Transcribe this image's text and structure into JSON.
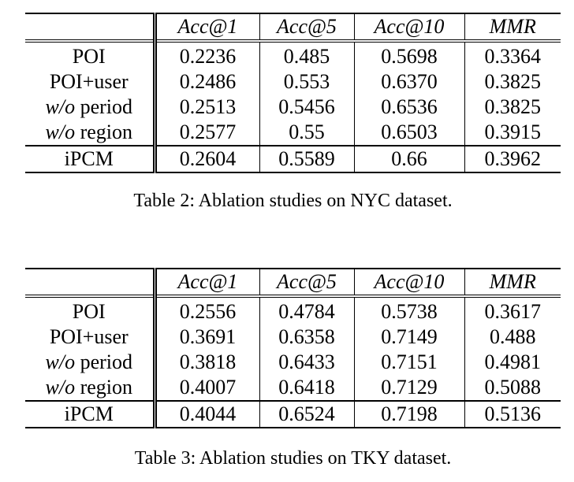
{
  "tables": [
    {
      "caption": "Table 2: Ablation studies on NYC dataset.",
      "header": [
        "Acc@1",
        "Acc@5",
        "Acc@10",
        "MMR"
      ],
      "rows": [
        {
          "label_prefix": "",
          "label_text": "POI",
          "values": [
            "0.2236",
            "0.485",
            "0.5698",
            "0.3364"
          ]
        },
        {
          "label_prefix": "",
          "label_text": "POI+user",
          "values": [
            "0.2486",
            "0.553",
            "0.6370",
            "0.3825"
          ]
        },
        {
          "label_prefix": "w/o",
          "label_text": " period",
          "values": [
            "0.2513",
            "0.5456",
            "0.6536",
            "0.3825"
          ]
        },
        {
          "label_prefix": "w/o",
          "label_text": " region",
          "values": [
            "0.2577",
            "0.55",
            "0.6503",
            "0.3915"
          ]
        },
        {
          "label_prefix": "",
          "label_text": "iPCM",
          "values": [
            "0.2604",
            "0.5589",
            "0.66",
            "0.3962"
          ],
          "bold_values": true
        }
      ]
    },
    {
      "caption": "Table 3: Ablation studies on TKY dataset.",
      "header": [
        "Acc@1",
        "Acc@5",
        "Acc@10",
        "MMR"
      ],
      "rows": [
        {
          "label_prefix": "",
          "label_text": "POI",
          "values": [
            "0.2556",
            "0.4784",
            "0.5738",
            "0.3617"
          ]
        },
        {
          "label_prefix": "",
          "label_text": "POI+user",
          "values": [
            "0.3691",
            "0.6358",
            "0.7149",
            "0.488"
          ]
        },
        {
          "label_prefix": "w/o",
          "label_text": " period",
          "values": [
            "0.3818",
            "0.6433",
            "0.7151",
            "0.4981"
          ]
        },
        {
          "label_prefix": "w/o",
          "label_text": " region",
          "values": [
            "0.4007",
            "0.6418",
            "0.7129",
            "0.5088"
          ]
        },
        {
          "label_prefix": "",
          "label_text": "iPCM",
          "values": [
            "0.4044",
            "0.6524",
            "0.7198",
            "0.5136"
          ],
          "bold_values": true
        }
      ]
    }
  ]
}
